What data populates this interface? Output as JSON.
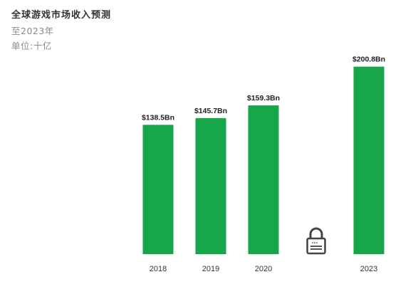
{
  "header": {
    "title": "全球游戏市场收入预测",
    "subtitle": "至2023年",
    "unit": "单位:十亿"
  },
  "colors": {
    "bar": "#17a649",
    "label": "#222222",
    "axis_text": "#333333"
  },
  "icons": {
    "locked_year": "padlock-icon"
  },
  "chart_data": {
    "type": "bar",
    "title": "全球游戏市场收入预测",
    "subtitle": "至2023年",
    "xlabel": "",
    "ylabel": "单位:十亿",
    "categories": [
      "2018",
      "2019",
      "2020",
      "",
      "2023"
    ],
    "values": [
      138.5,
      145.7,
      159.3,
      null,
      200.8
    ],
    "data_labels": [
      "$138.5Bn",
      "$145.7Bn",
      "$159.3Bn",
      "",
      "$200.8Bn"
    ],
    "ylim": [
      0,
      215
    ],
    "grid": false,
    "legend": "none"
  }
}
